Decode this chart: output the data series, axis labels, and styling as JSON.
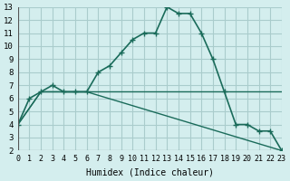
{
  "xlabel": "Humidex (Indice chaleur)",
  "bg_color": "#d4eeee",
  "grid_color": "#aacccc",
  "line_color": "#1a6b5a",
  "xlim": [
    0,
    23
  ],
  "ylim": [
    2,
    13
  ],
  "xticks": [
    0,
    1,
    2,
    3,
    4,
    5,
    6,
    7,
    8,
    9,
    10,
    11,
    12,
    13,
    14,
    15,
    16,
    17,
    18,
    19,
    20,
    21,
    22,
    23
  ],
  "yticks": [
    2,
    3,
    4,
    5,
    6,
    7,
    8,
    9,
    10,
    11,
    12,
    13
  ],
  "line1_x": [
    0,
    1,
    2,
    3,
    4,
    5,
    6,
    7,
    8,
    9,
    10,
    11,
    12,
    13,
    14,
    15,
    16,
    17,
    18,
    19,
    20,
    21,
    22,
    23
  ],
  "line1_y": [
    4,
    6,
    6.5,
    7,
    6.5,
    6.5,
    6.5,
    8,
    8.5,
    9.5,
    10.5,
    11,
    11,
    13,
    12.5,
    12.5,
    11,
    9,
    6.5,
    4,
    4,
    3.5,
    3.5,
    2
  ],
  "line2_x": [
    0,
    2,
    6,
    23
  ],
  "line2_y": [
    4,
    6.5,
    6.5,
    6.5
  ],
  "line3_x": [
    0,
    2,
    6,
    23
  ],
  "line3_y": [
    4,
    6.5,
    6.5,
    2
  ]
}
